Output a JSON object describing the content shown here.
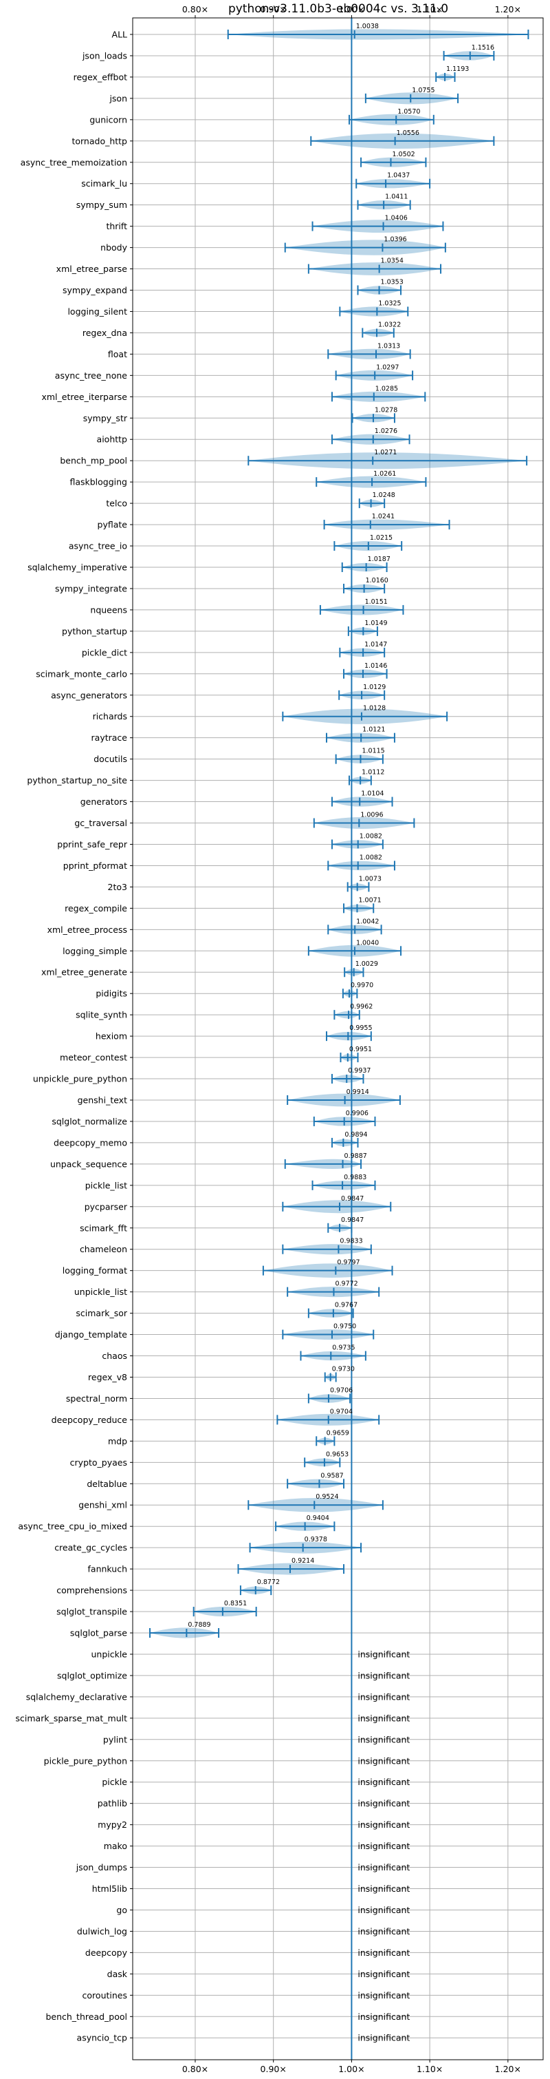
{
  "chart_data": {
    "type": "violin",
    "title": "python-v3.11.0b3-eb0004c vs. 3.11.0",
    "xlim": [
      0.72,
      1.245
    ],
    "xticks": [
      0.8,
      0.9,
      1.0,
      1.1,
      1.2
    ],
    "xtick_labels": [
      "0.80×",
      "0.90×",
      "1.00×",
      "1.10×",
      "1.20×"
    ],
    "grid": true,
    "reference_line": 1.0,
    "insignificant_text": "insignificant",
    "benchmarks": [
      {
        "name": "ALL",
        "value": 1.0038,
        "label": "1.0038",
        "min": 0.842,
        "max": 1.226,
        "spread": 0.04
      },
      {
        "name": "json_loads",
        "value": 1.1516,
        "label": "1.1516",
        "min": 1.118,
        "max": 1.182,
        "spread": 0.03
      },
      {
        "name": "regex_effbot",
        "value": 1.1193,
        "label": "1.1193",
        "min": 1.108,
        "max": 1.132,
        "spread": 0.012
      },
      {
        "name": "json",
        "value": 1.0755,
        "label": "1.0755",
        "min": 1.018,
        "max": 1.136,
        "spread": 0.05
      },
      {
        "name": "gunicorn",
        "value": 1.057,
        "label": "1.0570",
        "min": 0.997,
        "max": 1.105,
        "spread": 0.045
      },
      {
        "name": "tornado_http",
        "value": 1.0556,
        "label": "1.0556",
        "min": 0.948,
        "max": 1.182,
        "spread": 0.08
      },
      {
        "name": "async_tree_memoization",
        "value": 1.0502,
        "label": "1.0502",
        "min": 1.012,
        "max": 1.095,
        "spread": 0.035
      },
      {
        "name": "scimark_lu",
        "value": 1.0437,
        "label": "1.0437",
        "min": 1.006,
        "max": 1.1,
        "spread": 0.03
      },
      {
        "name": "sympy_sum",
        "value": 1.0411,
        "label": "1.0411",
        "min": 1.008,
        "max": 1.075,
        "spread": 0.03
      },
      {
        "name": "thrift",
        "value": 1.0406,
        "label": "1.0406",
        "min": 0.95,
        "max": 1.117,
        "spread": 0.06
      },
      {
        "name": "nbody",
        "value": 1.0396,
        "label": "1.0396",
        "min": 0.915,
        "max": 1.12,
        "spread": 0.08
      },
      {
        "name": "xml_etree_parse",
        "value": 1.0354,
        "label": "1.0354",
        "min": 0.945,
        "max": 1.114,
        "spread": 0.06
      },
      {
        "name": "sympy_expand",
        "value": 1.0353,
        "label": "1.0353",
        "min": 1.008,
        "max": 1.063,
        "spread": 0.025
      },
      {
        "name": "logging_silent",
        "value": 1.0325,
        "label": "1.0325",
        "min": 0.985,
        "max": 1.072,
        "spread": 0.035
      },
      {
        "name": "regex_dna",
        "value": 1.0322,
        "label": "1.0322",
        "min": 1.014,
        "max": 1.054,
        "spread": 0.02
      },
      {
        "name": "float",
        "value": 1.0313,
        "label": "1.0313",
        "min": 0.97,
        "max": 1.075,
        "spread": 0.04
      },
      {
        "name": "async_tree_none",
        "value": 1.0297,
        "label": "1.0297",
        "min": 0.98,
        "max": 1.078,
        "spread": 0.04
      },
      {
        "name": "xml_etree_iterparse",
        "value": 1.0285,
        "label": "1.0285",
        "min": 0.975,
        "max": 1.094,
        "spread": 0.04
      },
      {
        "name": "sympy_str",
        "value": 1.0278,
        "label": "1.0278",
        "min": 1.001,
        "max": 1.055,
        "spread": 0.025
      },
      {
        "name": "aiohttp",
        "value": 1.0276,
        "label": "1.0276",
        "min": 0.975,
        "max": 1.074,
        "spread": 0.04
      },
      {
        "name": "bench_mp_pool",
        "value": 1.0271,
        "label": "1.0271",
        "min": 0.868,
        "max": 1.224,
        "spread": 0.12
      },
      {
        "name": "flaskblogging",
        "value": 1.0261,
        "label": "1.0261",
        "min": 0.955,
        "max": 1.095,
        "spread": 0.05
      },
      {
        "name": "telco",
        "value": 1.0248,
        "label": "1.0248",
        "min": 1.01,
        "max": 1.042,
        "spread": 0.015
      },
      {
        "name": "pyflate",
        "value": 1.0241,
        "label": "1.0241",
        "min": 0.965,
        "max": 1.125,
        "spread": 0.04
      },
      {
        "name": "async_tree_io",
        "value": 1.0215,
        "label": "1.0215",
        "min": 0.978,
        "max": 1.064,
        "spread": 0.035
      },
      {
        "name": "sqlalchemy_imperative",
        "value": 1.0187,
        "label": "1.0187",
        "min": 0.988,
        "max": 1.045,
        "spread": 0.025
      },
      {
        "name": "sympy_integrate",
        "value": 1.016,
        "label": "1.0160",
        "min": 0.99,
        "max": 1.042,
        "spread": 0.025
      },
      {
        "name": "nqueens",
        "value": 1.0151,
        "label": "1.0151",
        "min": 0.96,
        "max": 1.066,
        "spread": 0.04
      },
      {
        "name": "python_startup",
        "value": 1.0149,
        "label": "1.0149",
        "min": 0.996,
        "max": 1.033,
        "spread": 0.015
      },
      {
        "name": "pickle_dict",
        "value": 1.0147,
        "label": "1.0147",
        "min": 0.985,
        "max": 1.042,
        "spread": 0.025
      },
      {
        "name": "scimark_monte_carlo",
        "value": 1.0146,
        "label": "1.0146",
        "min": 0.99,
        "max": 1.045,
        "spread": 0.025
      },
      {
        "name": "async_generators",
        "value": 1.0129,
        "label": "1.0129",
        "min": 0.984,
        "max": 1.042,
        "spread": 0.025
      },
      {
        "name": "richards",
        "value": 1.0128,
        "label": "1.0128",
        "min": 0.912,
        "max": 1.122,
        "spread": 0.08
      },
      {
        "name": "raytrace",
        "value": 1.0121,
        "label": "1.0121",
        "min": 0.968,
        "max": 1.055,
        "spread": 0.035
      },
      {
        "name": "docutils",
        "value": 1.0115,
        "label": "1.0115",
        "min": 0.98,
        "max": 1.04,
        "spread": 0.025
      },
      {
        "name": "python_startup_no_site",
        "value": 1.0112,
        "label": "1.0112",
        "min": 0.997,
        "max": 1.025,
        "spread": 0.012
      },
      {
        "name": "generators",
        "value": 1.0104,
        "label": "1.0104",
        "min": 0.975,
        "max": 1.052,
        "spread": 0.035
      },
      {
        "name": "gc_traversal",
        "value": 1.0096,
        "label": "1.0096",
        "min": 0.952,
        "max": 1.08,
        "spread": 0.05
      },
      {
        "name": "pprint_safe_repr",
        "value": 1.0082,
        "label": "1.0082",
        "min": 0.975,
        "max": 1.04,
        "spread": 0.025
      },
      {
        "name": "pprint_pformat",
        "value": 1.0082,
        "label": "1.0082",
        "min": 0.97,
        "max": 1.055,
        "spread": 0.03
      },
      {
        "name": "2to3",
        "value": 1.0073,
        "label": "1.0073",
        "min": 0.995,
        "max": 1.022,
        "spread": 0.012
      },
      {
        "name": "regex_compile",
        "value": 1.0071,
        "label": "1.0071",
        "min": 0.99,
        "max": 1.028,
        "spread": 0.015
      },
      {
        "name": "xml_etree_process",
        "value": 1.0042,
        "label": "1.0042",
        "min": 0.97,
        "max": 1.038,
        "spread": 0.03
      },
      {
        "name": "logging_simple",
        "value": 1.004,
        "label": "1.0040",
        "min": 0.945,
        "max": 1.063,
        "spread": 0.05
      },
      {
        "name": "xml_etree_generate",
        "value": 1.0029,
        "label": "1.0029",
        "min": 0.991,
        "max": 1.015,
        "spread": 0.012
      },
      {
        "name": "pidigits",
        "value": 0.997,
        "label": "0.9970",
        "min": 0.989,
        "max": 1.007,
        "spread": 0.01
      },
      {
        "name": "sqlite_synth",
        "value": 0.9962,
        "label": "0.9962",
        "min": 0.978,
        "max": 1.01,
        "spread": 0.015
      },
      {
        "name": "hexiom",
        "value": 0.9955,
        "label": "0.9955",
        "min": 0.968,
        "max": 1.025,
        "spread": 0.025
      },
      {
        "name": "meteor_contest",
        "value": 0.9951,
        "label": "0.9951",
        "min": 0.986,
        "max": 1.008,
        "spread": 0.01
      },
      {
        "name": "unpickle_pure_python",
        "value": 0.9937,
        "label": "0.9937",
        "min": 0.975,
        "max": 1.015,
        "spread": 0.02
      },
      {
        "name": "genshi_text",
        "value": 0.9914,
        "label": "0.9914",
        "min": 0.918,
        "max": 1.062,
        "spread": 0.06
      },
      {
        "name": "sqlglot_normalize",
        "value": 0.9906,
        "label": "0.9906",
        "min": 0.952,
        "max": 1.03,
        "spread": 0.03
      },
      {
        "name": "deepcopy_memo",
        "value": 0.9894,
        "label": "0.9894",
        "min": 0.975,
        "max": 1.008,
        "spread": 0.015
      },
      {
        "name": "unpack_sequence",
        "value": 0.9887,
        "label": "0.9887",
        "min": 0.915,
        "max": 1.012,
        "spread": 0.035
      },
      {
        "name": "pickle_list",
        "value": 0.9883,
        "label": "0.9883",
        "min": 0.95,
        "max": 1.03,
        "spread": 0.03
      },
      {
        "name": "pycparser",
        "value": 0.9847,
        "label": "0.9847",
        "min": 0.912,
        "max": 1.05,
        "spread": 0.06
      },
      {
        "name": "scimark_fft",
        "value": 0.9847,
        "label": "0.9847",
        "min": 0.97,
        "max": 1.0,
        "spread": 0.012
      },
      {
        "name": "chameleon",
        "value": 0.9833,
        "label": "0.9833",
        "min": 0.912,
        "max": 1.025,
        "spread": 0.04
      },
      {
        "name": "logging_format",
        "value": 0.9797,
        "label": "0.9797",
        "min": 0.887,
        "max": 1.052,
        "spread": 0.07
      },
      {
        "name": "unpickle_list",
        "value": 0.9772,
        "label": "0.9772",
        "min": 0.918,
        "max": 1.035,
        "spread": 0.04
      },
      {
        "name": "scimark_sor",
        "value": 0.9767,
        "label": "0.9767",
        "min": 0.945,
        "max": 1.002,
        "spread": 0.025
      },
      {
        "name": "django_template",
        "value": 0.975,
        "label": "0.9750",
        "min": 0.912,
        "max": 1.028,
        "spread": 0.04
      },
      {
        "name": "chaos",
        "value": 0.9735,
        "label": "0.9735",
        "min": 0.935,
        "max": 1.018,
        "spread": 0.03
      },
      {
        "name": "regex_v8",
        "value": 0.973,
        "label": "0.9730",
        "min": 0.966,
        "max": 0.98,
        "spread": 0.008
      },
      {
        "name": "spectral_norm",
        "value": 0.9706,
        "label": "0.9706",
        "min": 0.945,
        "max": 0.998,
        "spread": 0.025
      },
      {
        "name": "deepcopy_reduce",
        "value": 0.9704,
        "label": "0.9704",
        "min": 0.905,
        "max": 1.035,
        "spread": 0.05
      },
      {
        "name": "mdp",
        "value": 0.9659,
        "label": "0.9659",
        "min": 0.955,
        "max": 0.978,
        "spread": 0.01
      },
      {
        "name": "crypto_pyaes",
        "value": 0.9653,
        "label": "0.9653",
        "min": 0.94,
        "max": 0.985,
        "spread": 0.02
      },
      {
        "name": "deltablue",
        "value": 0.9587,
        "label": "0.9587",
        "min": 0.918,
        "max": 0.99,
        "spread": 0.03
      },
      {
        "name": "genshi_xml",
        "value": 0.9524,
        "label": "0.9524",
        "min": 0.868,
        "max": 1.04,
        "spread": 0.07
      },
      {
        "name": "async_tree_cpu_io_mixed",
        "value": 0.9404,
        "label": "0.9404",
        "min": 0.903,
        "max": 0.978,
        "spread": 0.03
      },
      {
        "name": "create_gc_cycles",
        "value": 0.9378,
        "label": "0.9378",
        "min": 0.87,
        "max": 1.012,
        "spread": 0.05
      },
      {
        "name": "fannkuch",
        "value": 0.9214,
        "label": "0.9214",
        "min": 0.855,
        "max": 0.99,
        "spread": 0.05
      },
      {
        "name": "comprehensions",
        "value": 0.8772,
        "label": "0.8772",
        "min": 0.858,
        "max": 0.897,
        "spread": 0.018
      },
      {
        "name": "sqlglot_transpile",
        "value": 0.8351,
        "label": "0.8351",
        "min": 0.798,
        "max": 0.878,
        "spread": 0.035
      },
      {
        "name": "sqlglot_parse",
        "value": 0.7889,
        "label": "0.7889",
        "min": 0.742,
        "max": 0.83,
        "spread": 0.04
      },
      {
        "name": "unpickle",
        "insignificant": true
      },
      {
        "name": "sqlglot_optimize",
        "insignificant": true
      },
      {
        "name": "sqlalchemy_declarative",
        "insignificant": true
      },
      {
        "name": "scimark_sparse_mat_mult",
        "insignificant": true
      },
      {
        "name": "pylint",
        "insignificant": true
      },
      {
        "name": "pickle_pure_python",
        "insignificant": true
      },
      {
        "name": "pickle",
        "insignificant": true
      },
      {
        "name": "pathlib",
        "insignificant": true
      },
      {
        "name": "mypy2",
        "insignificant": true
      },
      {
        "name": "mako",
        "insignificant": true
      },
      {
        "name": "json_dumps",
        "insignificant": true
      },
      {
        "name": "html5lib",
        "insignificant": true
      },
      {
        "name": "go",
        "insignificant": true
      },
      {
        "name": "dulwich_log",
        "insignificant": true
      },
      {
        "name": "deepcopy",
        "insignificant": true
      },
      {
        "name": "dask",
        "insignificant": true
      },
      {
        "name": "coroutines",
        "insignificant": true
      },
      {
        "name": "bench_thread_pool",
        "insignificant": true
      },
      {
        "name": "asyncio_tcp",
        "insignificant": true
      }
    ]
  },
  "colors": {
    "accent": "#1f77b4",
    "grid": "#b0b0b0",
    "frame": "#000000"
  }
}
